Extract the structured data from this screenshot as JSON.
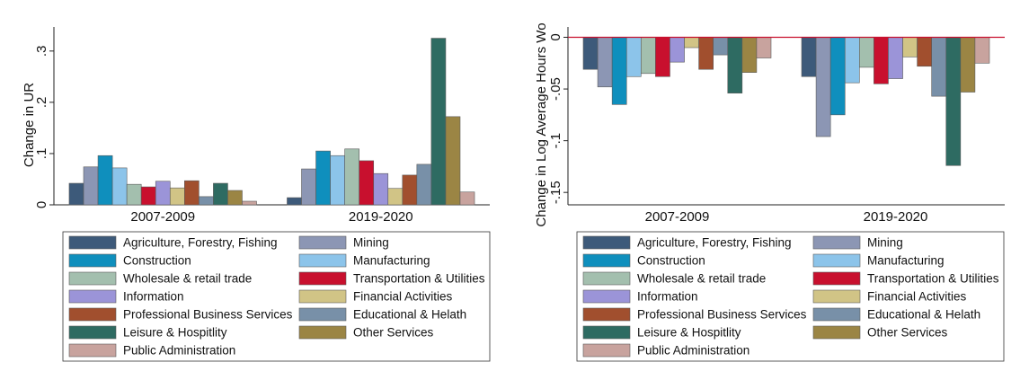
{
  "chart_data": [
    {
      "type": "bar",
      "ylabel": "Change in UR",
      "categories": [
        "2007-2009",
        "2019-2020"
      ],
      "ylim": [
        0,
        0.347
      ],
      "yticks": [
        0,
        {
          "value": 0.1,
          "label": ".1"
        },
        {
          "value": 0.2,
          "label": ".2"
        },
        {
          "value": 0.3,
          "label": ".3"
        }
      ],
      "series": [
        {
          "name": "Agriculture, Forestry, Fishing",
          "color": "#3d5a7a",
          "values": [
            0.042,
            0.014
          ]
        },
        {
          "name": "Mining",
          "color": "#8c96b4",
          "values": [
            0.074,
            0.07
          ]
        },
        {
          "name": "Construction",
          "color": "#0f8fbd",
          "values": [
            0.096,
            0.105
          ]
        },
        {
          "name": "Manufacturing",
          "color": "#8cc4ea",
          "values": [
            0.072,
            0.096
          ]
        },
        {
          "name": "Wholesale & retail trade",
          "color": "#a3bfae",
          "values": [
            0.04,
            0.109
          ]
        },
        {
          "name": "Transportation & Utilities",
          "color": "#c8102e",
          "values": [
            0.035,
            0.086
          ]
        },
        {
          "name": "Information",
          "color": "#9b94d8",
          "values": [
            0.046,
            0.061
          ]
        },
        {
          "name": "Financial Activities",
          "color": "#d1c486",
          "values": [
            0.033,
            0.032
          ]
        },
        {
          "name": "Professional Business Services",
          "color": "#a14f2e",
          "values": [
            0.047,
            0.058
          ]
        },
        {
          "name": "Educational & Helath",
          "color": "#7890a8",
          "values": [
            0.016,
            0.079
          ]
        },
        {
          "name": "Leisure & Hospitlity",
          "color": "#2e6b62",
          "values": [
            0.042,
            0.325
          ]
        },
        {
          "name": "Other Services",
          "color": "#9b8544",
          "values": [
            0.028,
            0.172
          ]
        },
        {
          "name": "Public Administration",
          "color": "#c8a39e",
          "values": [
            0.007,
            0.025
          ]
        }
      ]
    },
    {
      "type": "bar",
      "ylabel": "Change in Log Average Hours Wo",
      "categories": [
        "2007-2009",
        "2019-2020"
      ],
      "ylim": [
        -0.162,
        0.01
      ],
      "yticks": [
        0,
        {
          "value": -0.05,
          "label": "-.05"
        },
        {
          "value": -0.1,
          "label": "-.1"
        },
        {
          "value": -0.15,
          "label": "-.15"
        }
      ],
      "reference_line": {
        "value": 0,
        "color": "#c8102e"
      },
      "series": [
        {
          "name": "Agriculture, Forestry, Fishing",
          "color": "#3d5a7a",
          "values": [
            -0.031,
            -0.038
          ]
        },
        {
          "name": "Mining",
          "color": "#8c96b4",
          "values": [
            -0.048,
            -0.096
          ]
        },
        {
          "name": "Construction",
          "color": "#0f8fbd",
          "values": [
            -0.065,
            -0.075
          ]
        },
        {
          "name": "Manufacturing",
          "color": "#8cc4ea",
          "values": [
            -0.038,
            -0.044
          ]
        },
        {
          "name": "Wholesale & retail trade",
          "color": "#a3bfae",
          "values": [
            -0.035,
            -0.029
          ]
        },
        {
          "name": "Transportation & Utilities",
          "color": "#c8102e",
          "values": [
            -0.038,
            -0.045
          ]
        },
        {
          "name": "Information",
          "color": "#9b94d8",
          "values": [
            -0.024,
            -0.04
          ]
        },
        {
          "name": "Financial Activities",
          "color": "#d1c486",
          "values": [
            -0.01,
            -0.019
          ]
        },
        {
          "name": "Professional Business Services",
          "color": "#a14f2e",
          "values": [
            -0.031,
            -0.028
          ]
        },
        {
          "name": "Educational & Helath",
          "color": "#7890a8",
          "values": [
            -0.017,
            -0.057
          ]
        },
        {
          "name": "Leisure & Hospitlity",
          "color": "#2e6b62",
          "values": [
            -0.054,
            -0.124
          ]
        },
        {
          "name": "Other Services",
          "color": "#9b8544",
          "values": [
            -0.034,
            -0.053
          ]
        },
        {
          "name": "Public Administration",
          "color": "#c8a39e",
          "values": [
            -0.02,
            -0.025
          ]
        }
      ]
    }
  ]
}
